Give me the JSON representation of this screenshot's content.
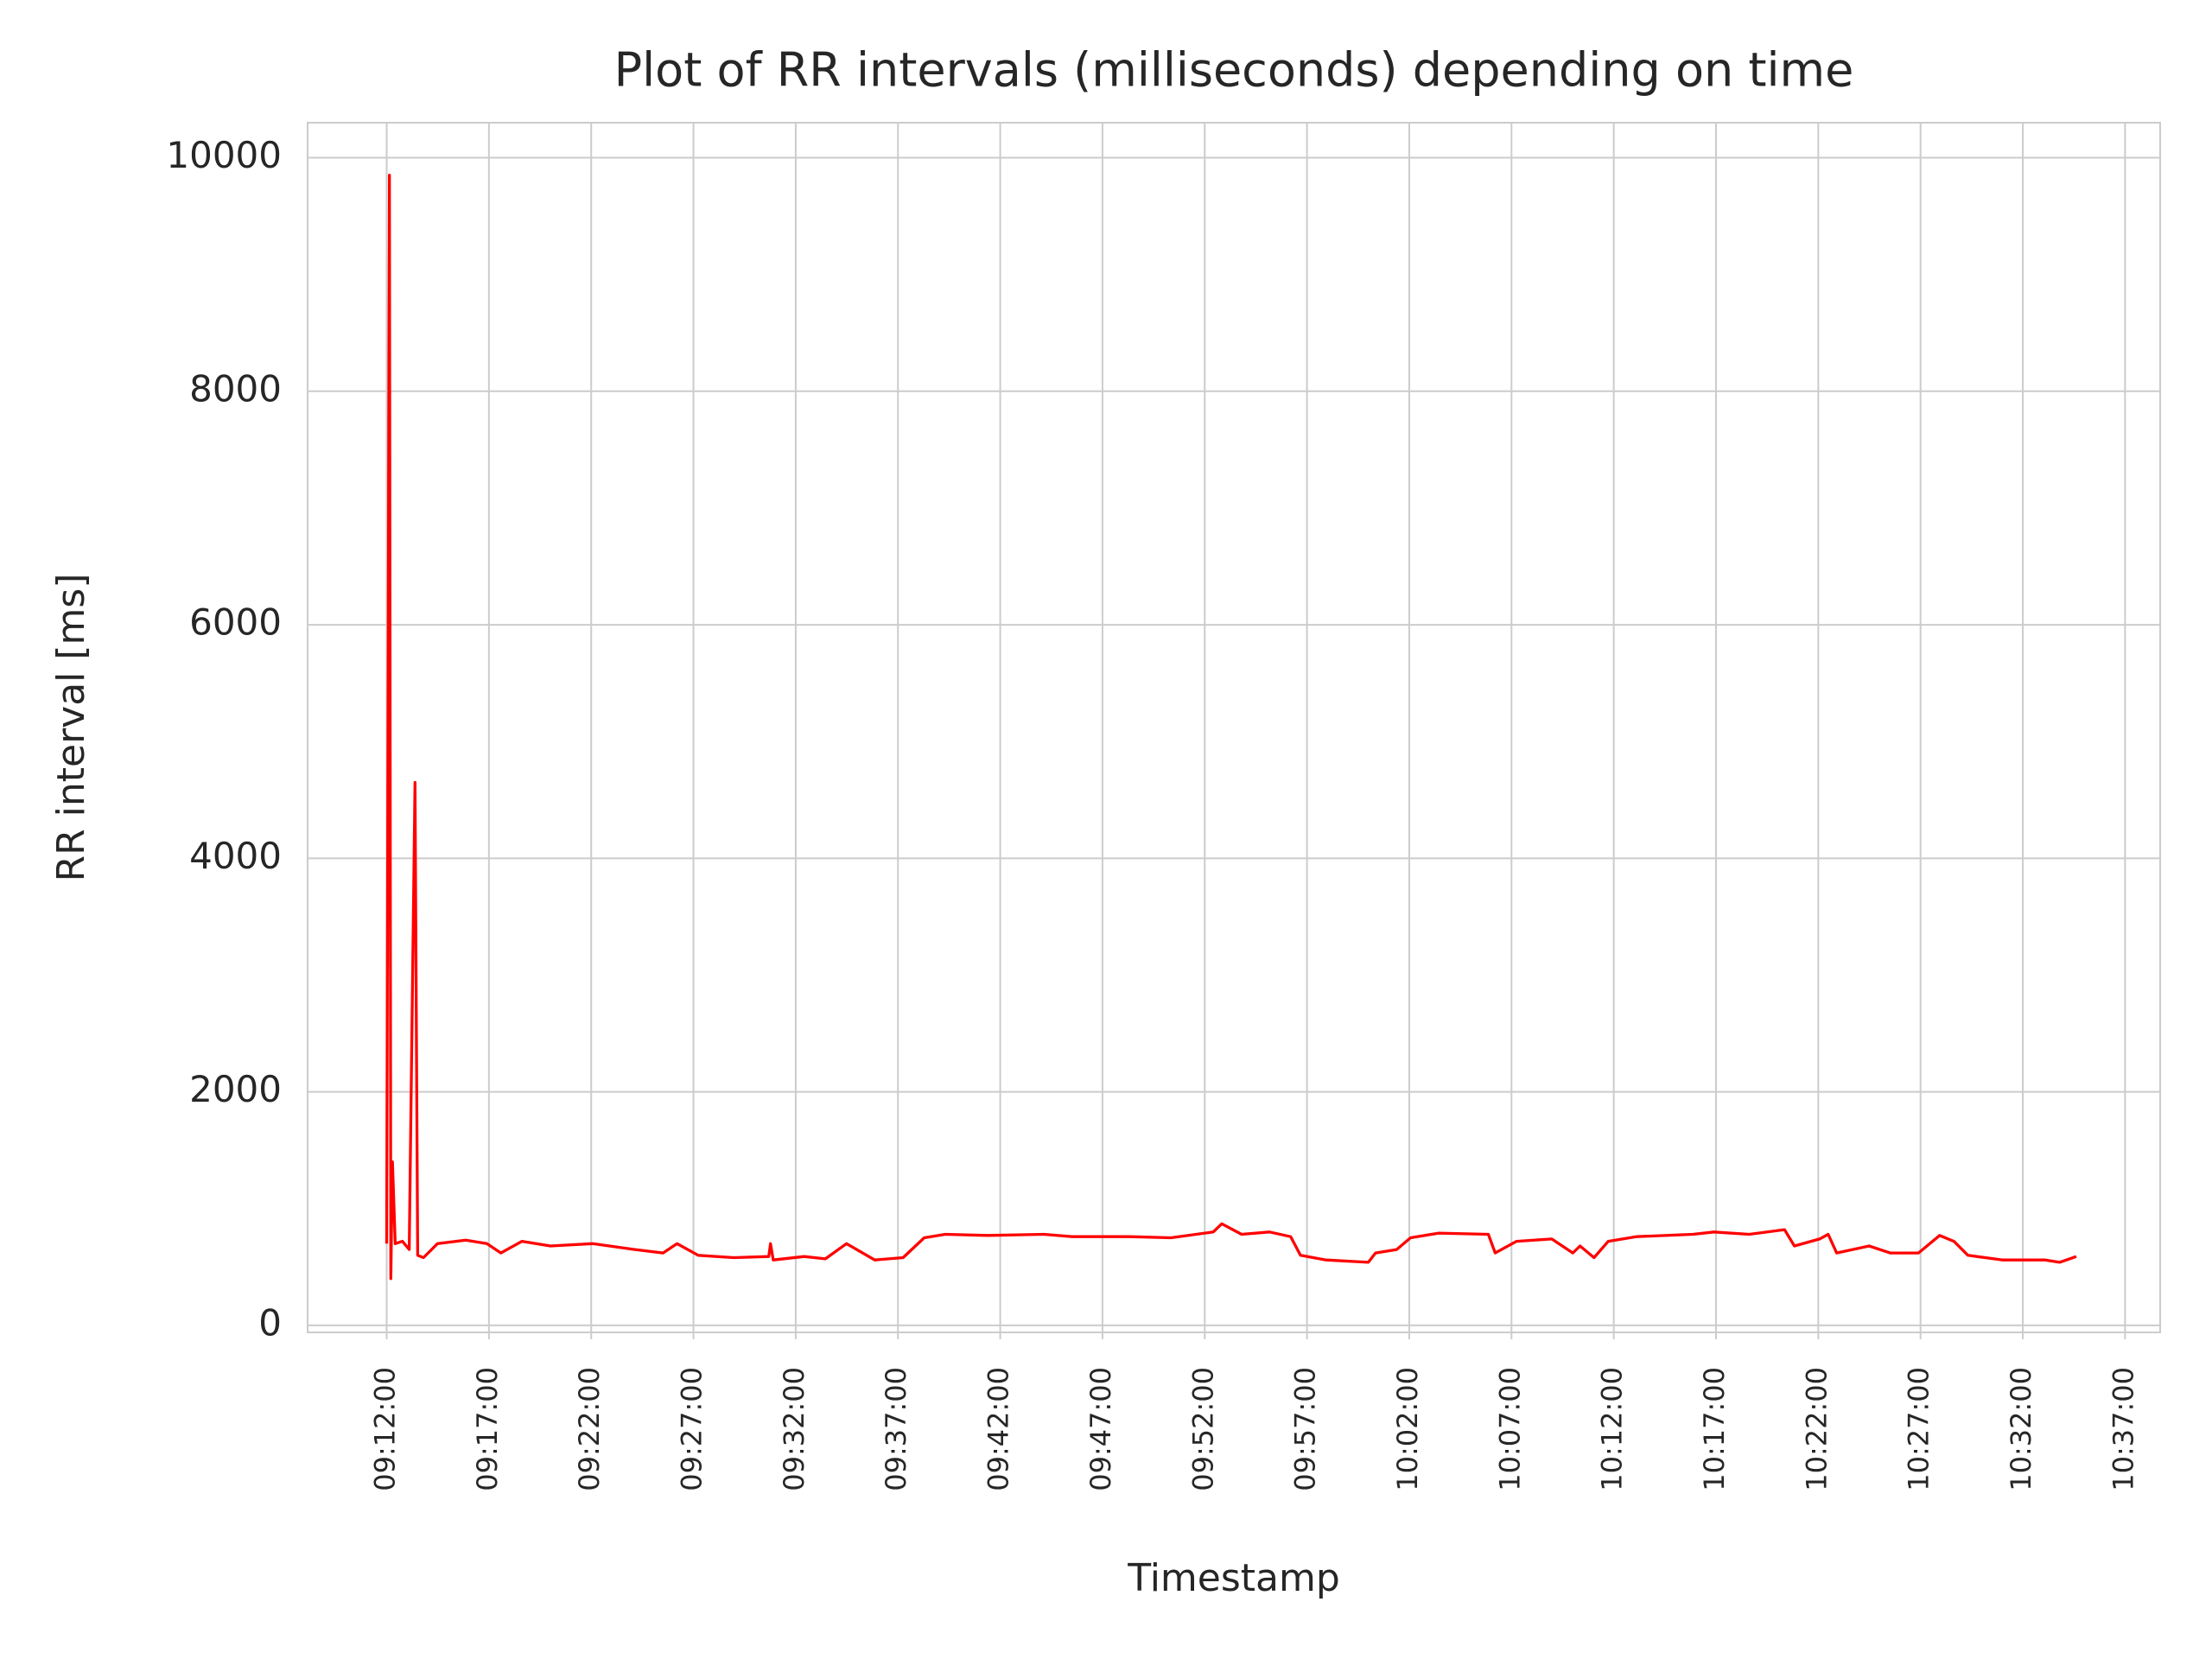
{
  "chart_data": {
    "type": "line",
    "title": "Plot of RR intervals (milliseconds) depending on time",
    "xlabel": "Timestamp",
    "ylabel": "RR interval [ms]",
    "color": "#ff0000",
    "grid": true,
    "x": [
      "09:12:00",
      "09:12:08",
      "09:12:12",
      "09:12:17",
      "09:12:25",
      "09:12:46",
      "09:13:06",
      "09:13:23",
      "09:13:27",
      "09:13:31",
      "09:13:48",
      "09:14:29",
      "09:15:52",
      "09:16:54",
      "09:17:35",
      "09:18:37",
      "09:20:00",
      "09:22:04",
      "09:24:08",
      "09:25:31",
      "09:26:12",
      "09:27:14",
      "09:28:58",
      "09:30:41",
      "09:30:46",
      "09:30:54",
      "09:32:25",
      "09:33:27",
      "09:34:29",
      "09:35:52",
      "09:37:15",
      "09:38:17",
      "09:39:19",
      "09:41:23",
      "09:44:08",
      "09:45:31",
      "09:48:17",
      "09:50:21",
      "09:52:25",
      "09:52:50",
      "09:53:48",
      "09:55:10",
      "09:56:12",
      "09:56:41",
      "09:57:56",
      "10:00:00",
      "10:00:21",
      "10:01:23",
      "10:02:04",
      "10:03:27",
      "10:05:52",
      "10:06:12",
      "10:07:15",
      "10:08:58",
      "10:10:00",
      "10:10:21",
      "10:11:02",
      "10:11:44",
      "10:13:06",
      "10:15:52",
      "10:16:54",
      "10:18:37",
      "10:20:21",
      "10:20:50",
      "10:22:04",
      "10:22:29",
      "10:22:54",
      "10:24:29",
      "10:25:31",
      "10:26:54",
      "10:27:56",
      "10:28:38",
      "10:29:19",
      "10:31:02",
      "10:33:06",
      "10:33:48",
      "10:34:37"
    ],
    "values": [
      700,
      9850,
      400,
      1400,
      700,
      720,
      650,
      4650,
      2650,
      600,
      580,
      700,
      730,
      700,
      620,
      720,
      680,
      700,
      650,
      620,
      700,
      600,
      580,
      590,
      700,
      560,
      590,
      570,
      700,
      560,
      580,
      750,
      780,
      770,
      780,
      760,
      760,
      750,
      800,
      870,
      780,
      800,
      760,
      600,
      560,
      540,
      620,
      650,
      750,
      790,
      780,
      620,
      720,
      740,
      620,
      680,
      580,
      720,
      760,
      780,
      800,
      780,
      820,
      680,
      740,
      780,
      620,
      680,
      620,
      620,
      770,
      720,
      600,
      560,
      560,
      540,
      590
    ],
    "xlim": [
      "09:08:08",
      "10:38:43"
    ],
    "xticks": [
      "09:12:00",
      "09:17:00",
      "09:22:00",
      "09:27:00",
      "09:32:00",
      "09:37:00",
      "09:42:00",
      "09:47:00",
      "09:52:00",
      "09:57:00",
      "10:02:00",
      "10:07:00",
      "10:12:00",
      "10:17:00",
      "10:22:00",
      "10:27:00",
      "10:32:00",
      "10:37:00"
    ],
    "ylim": [
      -60,
      10300
    ],
    "yticks": [
      0,
      2000,
      4000,
      6000,
      8000,
      10000
    ]
  }
}
